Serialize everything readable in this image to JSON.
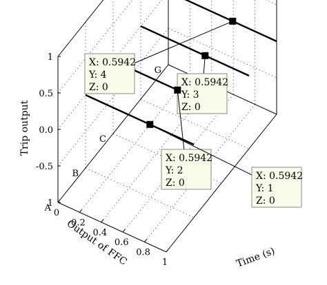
{
  "chart_data": {
    "type": "line",
    "subtype": "3d-line",
    "xlabel": "Time (s)",
    "ylabel": "Output of FFC",
    "zlabel": "Trip output",
    "xlim": [
      0,
      1
    ],
    "ylim": [
      0,
      4
    ],
    "zlim": [
      -1,
      1
    ],
    "x_ticks": [
      "0",
      "0.2",
      "0.4",
      "0.6",
      "0.8",
      "1"
    ],
    "y_tick_labels": [
      "A",
      "B",
      "C",
      "G"
    ],
    "z_ticks": [
      "1",
      "0.5",
      "0.0",
      "-0.5",
      "1"
    ],
    "grid": true,
    "series": [
      {
        "y_level": 1,
        "x": [
          0,
          1
        ],
        "z": [
          0,
          0
        ]
      },
      {
        "y_level": 2,
        "x": [
          0,
          1
        ],
        "z": [
          0,
          0
        ]
      },
      {
        "y_level": 3,
        "x": [
          0,
          1
        ],
        "z": [
          0,
          0
        ]
      },
      {
        "y_level": 4,
        "x": [
          0,
          1
        ],
        "z": [
          0,
          0
        ]
      }
    ],
    "datatips": [
      {
        "lines": [
          "X: 0.5942",
          "Y: 4",
          "Z: 0"
        ]
      },
      {
        "lines": [
          "X: 0.5942",
          "Y: 3",
          "Z: 0"
        ]
      },
      {
        "lines": [
          "X: 0.5942",
          "Y: 2",
          "Z: 0"
        ]
      },
      {
        "lines": [
          "X: 0.5942",
          "Y: 1",
          "Z: 0"
        ]
      }
    ]
  }
}
